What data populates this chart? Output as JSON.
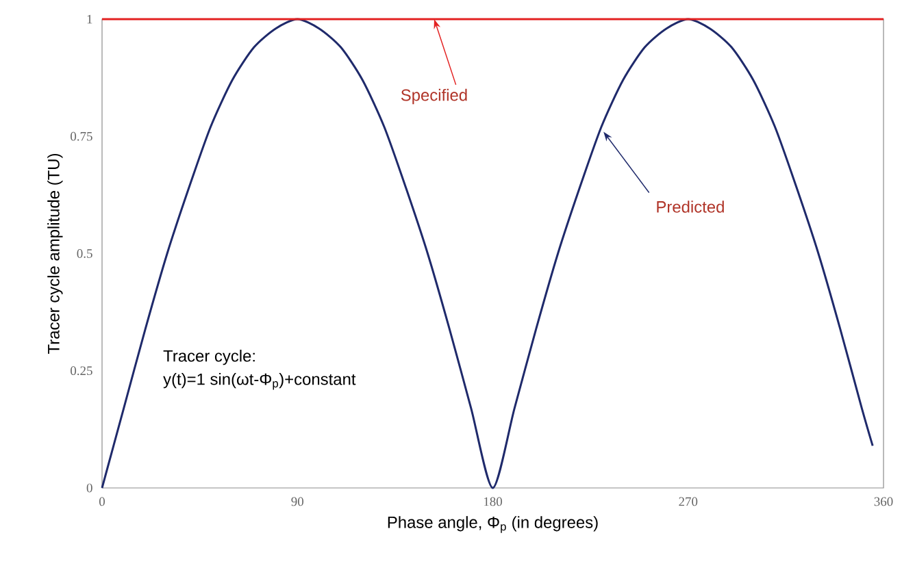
{
  "chart_data": {
    "type": "line",
    "xlabel": "Phase angle, Φ$_{p}$ (in degrees)",
    "ylabel": "Tracer cycle amplitude (TU)",
    "series": [
      {
        "color": "#1f2a6b",
        "x": [
          0,
          10,
          20,
          30,
          40,
          50,
          60,
          70,
          80,
          90,
          100,
          110,
          120,
          130,
          140,
          150,
          160,
          170,
          180,
          190,
          200,
          210,
          220,
          230,
          240,
          250,
          260,
          270,
          280,
          290,
          300,
          310,
          320,
          330,
          340,
          350,
          355
        ],
        "values": [
          0,
          0.17,
          0.34,
          0.5,
          0.64,
          0.77,
          0.87,
          0.94,
          0.98,
          1,
          0.98,
          0.94,
          0.87,
          0.77,
          0.64,
          0.5,
          0.34,
          0.17,
          0,
          0.17,
          0.34,
          0.5,
          0.64,
          0.77,
          0.87,
          0.94,
          0.98,
          1,
          0.98,
          0.94,
          0.87,
          0.77,
          0.64,
          0.5,
          0.34,
          0.17,
          0.09
        ]
      },
      {
        "color": "#e32222",
        "x": [
          0,
          360
        ],
        "values": [
          1,
          1
        ]
      }
    ],
    "annotations": [
      {
        "text": "Specified",
        "x": 153,
        "y": 1
      },
      "Predicted",
      "Tracer cycle:",
      "y(t)=1 sin(ωt-Φ$_{p}$)+constant"
    ],
    "xlim": [
      0,
      360
    ],
    "ylim": [
      0,
      1
    ],
    "xticks": [
      0,
      90,
      180,
      270,
      360
    ],
    "yticks": [
      0,
      0.25,
      0.5,
      0.75,
      1
    ],
    "grid": false
  }
}
